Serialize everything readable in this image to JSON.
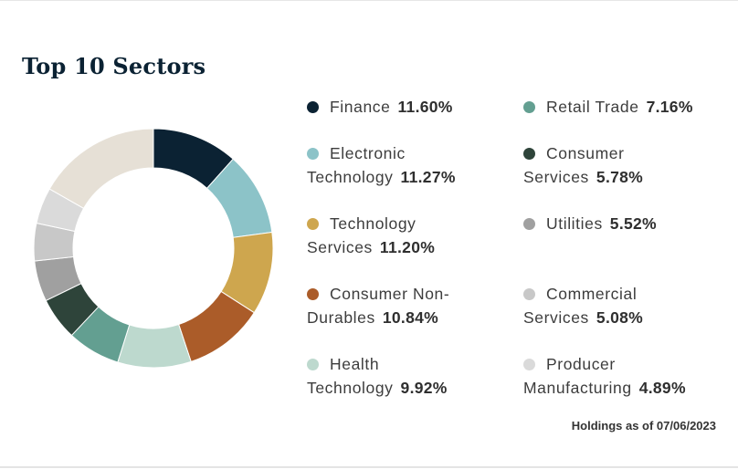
{
  "title": "Top 10 Sectors",
  "footnote": "Holdings as of 07/06/2023",
  "chart_data": {
    "type": "pie",
    "title": "Top 10 Sectors",
    "categories": [
      "Finance",
      "Electronic Technology",
      "Technology Services",
      "Consumer Non-Durables",
      "Health Technology",
      "Retail Trade",
      "Consumer Services",
      "Utilities",
      "Commercial Services",
      "Producer Manufacturing"
    ],
    "values": [
      11.6,
      11.27,
      11.2,
      10.84,
      9.92,
      7.16,
      5.78,
      5.52,
      5.08,
      4.89
    ],
    "value_labels": [
      "11.60%",
      "11.27%",
      "11.20%",
      "10.84%",
      "9.92%",
      "7.16%",
      "5.78%",
      "5.52%",
      "5.08%",
      "4.89%"
    ],
    "remainder_color": "#e6e0d6",
    "colors": [
      "#0b2233",
      "#8cc3c8",
      "#cea64e",
      "#ab5c29",
      "#bdd9ce",
      "#639f91",
      "#2e443a",
      "#a0a0a0",
      "#c8c8c8",
      "#dadada"
    ],
    "legend_placement": "right"
  }
}
